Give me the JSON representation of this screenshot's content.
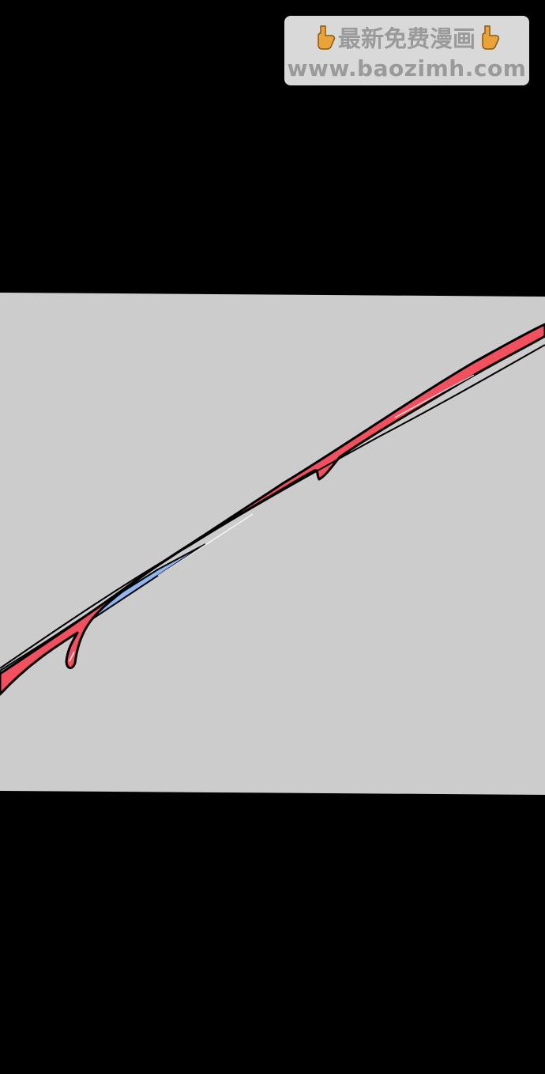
{
  "watermark": {
    "line1": "最新免费漫画",
    "line2": "www.baozimh.com"
  },
  "colors": {
    "background": "#000000",
    "panel": "#cccccc",
    "blade_red": "#f2505e",
    "blade_blue": "#8fb6f0",
    "outline": "#000000",
    "watermark_bg": "#d9d9d9",
    "watermark_text": "#9a9a9a"
  },
  "icons": [
    "pointing-down-hand-icon",
    "pointing-down-hand-icon"
  ]
}
